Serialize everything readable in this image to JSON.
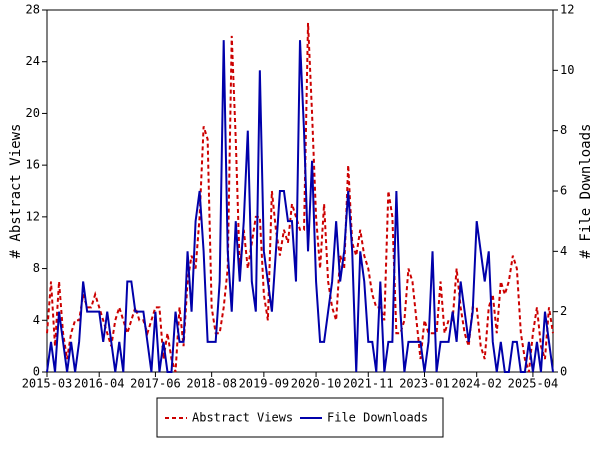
{
  "chart_data": {
    "type": "line",
    "ylabel": "# Abstract Views",
    "y2label": "# File Downloads",
    "x": [
      "2015-03",
      "2015-04",
      "2015-05",
      "2015-06",
      "2015-07",
      "2015-08",
      "2015-09",
      "2015-10",
      "2015-11",
      "2015-12",
      "2016-01",
      "2016-02",
      "2016-03",
      "2016-04",
      "2016-05",
      "2016-06",
      "2016-07",
      "2016-08",
      "2016-09",
      "2016-10",
      "2016-11",
      "2016-12",
      "2017-01",
      "2017-02",
      "2017-03",
      "2017-04",
      "2017-05",
      "2017-06",
      "2017-07",
      "2017-08",
      "2017-09",
      "2017-10",
      "2017-11",
      "2017-12",
      "2018-01",
      "2018-02",
      "2018-03",
      "2018-04",
      "2018-05",
      "2018-06",
      "2018-07",
      "2018-08",
      "2018-09",
      "2018-10",
      "2018-11",
      "2018-12",
      "2019-01",
      "2019-02",
      "2019-03",
      "2019-04",
      "2019-05",
      "2019-06",
      "2019-07",
      "2019-08",
      "2019-09",
      "2019-10",
      "2019-11",
      "2019-12",
      "2020-01",
      "2020-02",
      "2020-03",
      "2020-04",
      "2020-05",
      "2020-06",
      "2020-07",
      "2020-08",
      "2020-09",
      "2020-10",
      "2020-11",
      "2020-12",
      "2021-01",
      "2021-02",
      "2021-03",
      "2021-04",
      "2021-05",
      "2021-06",
      "2021-07",
      "2021-08",
      "2021-09",
      "2021-10",
      "2021-11",
      "2021-12",
      "2022-01",
      "2022-02",
      "2022-03",
      "2022-04",
      "2022-05",
      "2022-06",
      "2022-07",
      "2022-08",
      "2022-09",
      "2022-10",
      "2022-11",
      "2022-12",
      "2023-01",
      "2023-02",
      "2023-03",
      "2023-04",
      "2023-05",
      "2023-06",
      "2023-07",
      "2023-08",
      "2023-09",
      "2023-10",
      "2023-11",
      "2023-12",
      "2024-01",
      "2024-02",
      "2024-03",
      "2024-04",
      "2024-05",
      "2024-06",
      "2024-07",
      "2024-08",
      "2024-09",
      "2024-10",
      "2024-11",
      "2024-12",
      "2025-01",
      "2025-02",
      "2025-03",
      "2025-04",
      "2025-05",
      "2025-06",
      "2025-07",
      "2025-08",
      "2025-09"
    ],
    "xticks": [
      "2015-03",
      "2016-04",
      "2017-06",
      "2018-08",
      "2019-09",
      "2020-10",
      "2021-11",
      "2023-01",
      "2024-02",
      "2025-04"
    ],
    "series": [
      {
        "name": "Abstract Views",
        "color": "#cc0000",
        "dash": true,
        "axis": "y",
        "values": [
          3,
          7,
          2,
          7,
          3,
          1,
          3,
          4,
          4,
          6,
          5,
          5,
          6,
          5,
          4,
          3,
          2,
          4,
          5,
          4,
          3,
          4,
          5,
          4,
          4,
          3,
          4,
          5,
          5,
          1,
          3,
          1,
          0,
          5,
          2,
          7,
          9,
          8,
          12,
          19,
          18,
          5,
          3,
          3,
          5,
          8,
          26,
          18,
          8,
          11,
          8,
          10,
          12,
          12,
          6,
          4,
          14,
          11,
          9,
          11,
          10,
          13,
          12,
          11,
          11,
          27,
          20,
          12,
          8,
          13,
          7,
          5,
          4,
          9,
          8,
          16,
          10,
          9,
          11,
          9,
          8,
          6,
          5,
          5,
          4,
          14,
          12,
          3,
          3,
          4,
          8,
          7,
          4,
          1,
          4,
          3,
          3,
          3,
          7,
          3,
          4,
          4,
          8,
          5,
          3,
          2,
          5,
          5,
          2,
          1,
          5,
          6,
          3,
          7,
          6,
          7,
          9,
          8,
          3,
          1,
          0,
          3,
          5,
          2,
          1,
          5,
          3
        ]
      },
      {
        "name": "File Downloads",
        "color": "#0000aa",
        "dash": false,
        "axis": "y2",
        "values": [
          0,
          1,
          0,
          2,
          1,
          0,
          1,
          0,
          1,
          3,
          2,
          2,
          2,
          2,
          1,
          2,
          1,
          0,
          1,
          0,
          3,
          3,
          2,
          2,
          2,
          1,
          0,
          2,
          0,
          1,
          0,
          0,
          2,
          1,
          1,
          4,
          2,
          5,
          6,
          4,
          1,
          1,
          1,
          3,
          11,
          4,
          2,
          5,
          3,
          5,
          8,
          3,
          2,
          10,
          4,
          3,
          2,
          4,
          6,
          6,
          5,
          5,
          3,
          11,
          8,
          4,
          7,
          3,
          1,
          1,
          2,
          3,
          5,
          3,
          4,
          6,
          4,
          0,
          4,
          3,
          1,
          1,
          0,
          3,
          0,
          1,
          1,
          6,
          2,
          0,
          1,
          1,
          1,
          1,
          0,
          1,
          4,
          0,
          1,
          1,
          1,
          2,
          1,
          3,
          2,
          1,
          2,
          5,
          4,
          3,
          4,
          1,
          0,
          1,
          0,
          0,
          1,
          1,
          0,
          0,
          1,
          0,
          1,
          0,
          2,
          1,
          0
        ]
      }
    ],
    "ylim": [
      0,
      28
    ],
    "yticks": [
      0,
      4,
      8,
      12,
      16,
      20,
      24,
      28
    ],
    "y2lim": [
      0,
      12
    ],
    "y2ticks": [
      0,
      2,
      4,
      6,
      8,
      10,
      12
    ],
    "legend": "bottom"
  }
}
